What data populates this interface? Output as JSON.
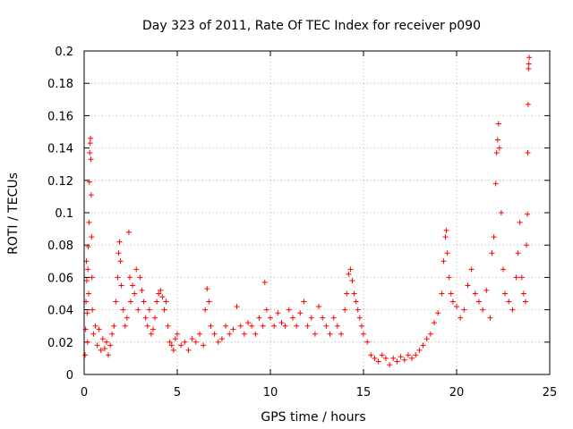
{
  "chart_data": {
    "type": "scatter",
    "title": "Day 323 of 2011, Rate Of TEC Index for receiver p090",
    "xlabel": "GPS time / hours",
    "ylabel": "ROTI / TECUs",
    "xlim": [
      0,
      25
    ],
    "ylim": [
      0,
      0.2
    ],
    "xticks": [
      "0",
      "5",
      "10",
      "15",
      "20",
      "25"
    ],
    "yticks": [
      "0",
      "0.02",
      "0.04",
      "0.06",
      "0.08",
      "0.1",
      "0.12",
      "0.14",
      "0.16",
      "0.18",
      "0.2"
    ],
    "grid": true,
    "marker": "plus",
    "color": "#ff0000",
    "series": [
      {
        "points": [
          [
            0.05,
            0.012
          ],
          [
            0.08,
            0.028
          ],
          [
            0.1,
            0.045
          ],
          [
            0.12,
            0.07
          ],
          [
            0.14,
            0.058
          ],
          [
            0.16,
            0.038
          ],
          [
            0.18,
            0.02
          ],
          [
            0.2,
            0.065
          ],
          [
            0.22,
            0.079
          ],
          [
            0.24,
            0.05
          ],
          [
            0.26,
            0.094
          ],
          [
            0.28,
            0.119
          ],
          [
            0.3,
            0.137
          ],
          [
            0.32,
            0.143
          ],
          [
            0.34,
            0.146
          ],
          [
            0.36,
            0.133
          ],
          [
            0.38,
            0.111
          ],
          [
            0.4,
            0.085
          ],
          [
            0.42,
            0.06
          ],
          [
            0.44,
            0.04
          ],
          [
            0.5,
            0.025
          ],
          [
            0.6,
            0.03
          ],
          [
            0.7,
            0.018
          ],
          [
            0.8,
            0.028
          ],
          [
            0.9,
            0.015
          ],
          [
            1.0,
            0.022
          ],
          [
            1.1,
            0.016
          ],
          [
            1.2,
            0.02
          ],
          [
            1.3,
            0.012
          ],
          [
            1.4,
            0.018
          ],
          [
            1.5,
            0.025
          ],
          [
            1.6,
            0.03
          ],
          [
            1.7,
            0.045
          ],
          [
            1.8,
            0.06
          ],
          [
            1.85,
            0.075
          ],
          [
            1.9,
            0.082
          ],
          [
            1.95,
            0.07
          ],
          [
            2.0,
            0.055
          ],
          [
            2.1,
            0.04
          ],
          [
            2.2,
            0.03
          ],
          [
            2.3,
            0.035
          ],
          [
            2.4,
            0.088
          ],
          [
            2.45,
            0.06
          ],
          [
            2.5,
            0.045
          ],
          [
            2.6,
            0.055
          ],
          [
            2.7,
            0.05
          ],
          [
            2.8,
            0.065
          ],
          [
            2.9,
            0.04
          ],
          [
            3.0,
            0.06
          ],
          [
            3.1,
            0.052
          ],
          [
            3.2,
            0.045
          ],
          [
            3.3,
            0.035
          ],
          [
            3.4,
            0.03
          ],
          [
            3.5,
            0.04
          ],
          [
            3.6,
            0.025
          ],
          [
            3.7,
            0.028
          ],
          [
            3.8,
            0.035
          ],
          [
            3.9,
            0.045
          ],
          [
            4.0,
            0.05
          ],
          [
            4.1,
            0.052
          ],
          [
            4.2,
            0.048
          ],
          [
            4.3,
            0.04
          ],
          [
            4.4,
            0.045
          ],
          [
            4.5,
            0.03
          ],
          [
            4.6,
            0.02
          ],
          [
            4.7,
            0.018
          ],
          [
            4.8,
            0.015
          ],
          [
            4.9,
            0.022
          ],
          [
            5.0,
            0.025
          ],
          [
            5.2,
            0.018
          ],
          [
            5.4,
            0.02
          ],
          [
            5.6,
            0.015
          ],
          [
            5.8,
            0.022
          ],
          [
            6.0,
            0.02
          ],
          [
            6.2,
            0.025
          ],
          [
            6.4,
            0.018
          ],
          [
            6.5,
            0.04
          ],
          [
            6.6,
            0.053
          ],
          [
            6.7,
            0.045
          ],
          [
            6.8,
            0.03
          ],
          [
            7.0,
            0.025
          ],
          [
            7.2,
            0.02
          ],
          [
            7.4,
            0.022
          ],
          [
            7.6,
            0.03
          ],
          [
            7.8,
            0.025
          ],
          [
            8.0,
            0.028
          ],
          [
            8.2,
            0.042
          ],
          [
            8.4,
            0.03
          ],
          [
            8.6,
            0.025
          ],
          [
            8.8,
            0.032
          ],
          [
            9.0,
            0.03
          ],
          [
            9.2,
            0.025
          ],
          [
            9.4,
            0.035
          ],
          [
            9.6,
            0.03
          ],
          [
            9.7,
            0.057
          ],
          [
            9.8,
            0.04
          ],
          [
            10.0,
            0.035
          ],
          [
            10.2,
            0.03
          ],
          [
            10.4,
            0.038
          ],
          [
            10.6,
            0.032
          ],
          [
            10.8,
            0.03
          ],
          [
            11.0,
            0.04
          ],
          [
            11.2,
            0.035
          ],
          [
            11.4,
            0.03
          ],
          [
            11.6,
            0.038
          ],
          [
            11.8,
            0.045
          ],
          [
            12.0,
            0.03
          ],
          [
            12.2,
            0.035
          ],
          [
            12.4,
            0.025
          ],
          [
            12.6,
            0.042
          ],
          [
            12.8,
            0.035
          ],
          [
            13.0,
            0.03
          ],
          [
            13.2,
            0.025
          ],
          [
            13.4,
            0.035
          ],
          [
            13.6,
            0.03
          ],
          [
            13.8,
            0.025
          ],
          [
            14.0,
            0.04
          ],
          [
            14.1,
            0.05
          ],
          [
            14.2,
            0.062
          ],
          [
            14.3,
            0.065
          ],
          [
            14.4,
            0.058
          ],
          [
            14.5,
            0.05
          ],
          [
            14.6,
            0.045
          ],
          [
            14.7,
            0.04
          ],
          [
            14.8,
            0.035
          ],
          [
            14.9,
            0.03
          ],
          [
            15.0,
            0.025
          ],
          [
            15.2,
            0.02
          ],
          [
            15.4,
            0.012
          ],
          [
            15.6,
            0.01
          ],
          [
            15.8,
            0.008
          ],
          [
            16.0,
            0.012
          ],
          [
            16.2,
            0.01
          ],
          [
            16.4,
            0.006
          ],
          [
            16.6,
            0.01
          ],
          [
            16.8,
            0.008
          ],
          [
            17.0,
            0.011
          ],
          [
            17.2,
            0.009
          ],
          [
            17.4,
            0.012
          ],
          [
            17.6,
            0.01
          ],
          [
            17.8,
            0.012
          ],
          [
            18.0,
            0.015
          ],
          [
            18.2,
            0.018
          ],
          [
            18.4,
            0.022
          ],
          [
            18.6,
            0.025
          ],
          [
            18.8,
            0.032
          ],
          [
            19.0,
            0.038
          ],
          [
            19.2,
            0.05
          ],
          [
            19.3,
            0.07
          ],
          [
            19.4,
            0.085
          ],
          [
            19.45,
            0.089
          ],
          [
            19.5,
            0.075
          ],
          [
            19.6,
            0.06
          ],
          [
            19.7,
            0.05
          ],
          [
            19.8,
            0.045
          ],
          [
            20.0,
            0.042
          ],
          [
            20.2,
            0.035
          ],
          [
            20.4,
            0.04
          ],
          [
            20.6,
            0.055
          ],
          [
            20.8,
            0.065
          ],
          [
            21.0,
            0.05
          ],
          [
            21.2,
            0.045
          ],
          [
            21.4,
            0.04
          ],
          [
            21.6,
            0.052
          ],
          [
            21.8,
            0.035
          ],
          [
            21.9,
            0.075
          ],
          [
            22.0,
            0.085
          ],
          [
            22.1,
            0.118
          ],
          [
            22.15,
            0.137
          ],
          [
            22.2,
            0.145
          ],
          [
            22.25,
            0.155
          ],
          [
            22.3,
            0.14
          ],
          [
            22.4,
            0.1
          ],
          [
            22.5,
            0.065
          ],
          [
            22.6,
            0.05
          ],
          [
            22.8,
            0.045
          ],
          [
            23.0,
            0.04
          ],
          [
            23.2,
            0.06
          ],
          [
            23.3,
            0.075
          ],
          [
            23.4,
            0.094
          ],
          [
            23.5,
            0.06
          ],
          [
            23.6,
            0.05
          ],
          [
            23.7,
            0.045
          ],
          [
            23.75,
            0.08
          ],
          [
            23.8,
            0.099
          ],
          [
            23.82,
            0.137
          ],
          [
            23.84,
            0.167
          ],
          [
            23.86,
            0.189
          ],
          [
            23.88,
            0.192
          ],
          [
            23.9,
            0.196
          ]
        ]
      }
    ]
  }
}
